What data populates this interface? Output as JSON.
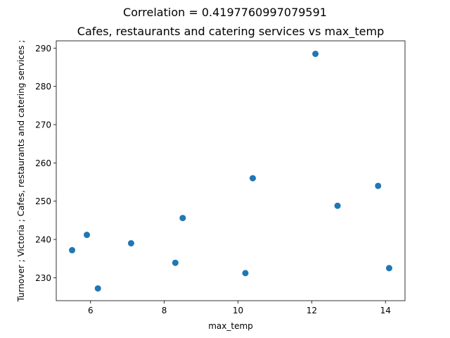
{
  "chart_data": {
    "type": "scatter",
    "suptitle": "Correlation = 0.4197760997079591",
    "title": "Cafes, restaurants and catering services vs max_temp",
    "xlabel": "max_temp",
    "ylabel": "Turnover ;  Victoria ;  Cafes, restaurants and catering services ;",
    "xlim": [
      5.07,
      14.53
    ],
    "ylim": [
      224.0,
      291.9
    ],
    "xticks": [
      6,
      8,
      10,
      12,
      14
    ],
    "yticks": [
      230,
      240,
      250,
      260,
      270,
      280,
      290
    ],
    "grid": false,
    "legend": "none",
    "marker_color": "#1f77b4",
    "points": [
      {
        "x": 5.5,
        "y": 237.2
      },
      {
        "x": 5.9,
        "y": 241.2
      },
      {
        "x": 6.2,
        "y": 227.2
      },
      {
        "x": 7.1,
        "y": 239.0
      },
      {
        "x": 8.3,
        "y": 233.9
      },
      {
        "x": 8.5,
        "y": 245.6
      },
      {
        "x": 10.2,
        "y": 231.2
      },
      {
        "x": 10.4,
        "y": 256.0
      },
      {
        "x": 12.1,
        "y": 288.5
      },
      {
        "x": 12.7,
        "y": 248.8
      },
      {
        "x": 13.8,
        "y": 254.0
      },
      {
        "x": 14.1,
        "y": 232.5
      }
    ]
  }
}
